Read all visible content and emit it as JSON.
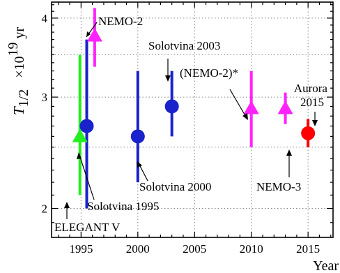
{
  "chart_data": {
    "type": "scatter",
    "ylabel": "T",
    "ylabel_subscript": "1/2",
    "ylabel_unit": "×10",
    "ylabel_unit_exp": "19",
    "ylabel_unit_suffix": " yr",
    "xlabel": "Year",
    "xlim": [
      1992.4,
      2017.2
    ],
    "ylim": [
      1.8,
      4.24
    ],
    "y_scale": "log",
    "grid": true,
    "x_ticks": [
      1995,
      2000,
      2005,
      2010,
      2015
    ],
    "y_ticks": [
      2,
      3,
      4
    ],
    "points": [
      {
        "id": "elegant-v",
        "label": "ELEGANT V",
        "x": 1994.9,
        "y": 2.6,
        "err_low": 2.1,
        "err_high": 3.5,
        "marker": "triangle",
        "color": "#22ee22"
      },
      {
        "id": "solotvina-1995",
        "label": "Solotvina 1995",
        "x": 1995.5,
        "y": 2.7,
        "err_low": 2.0,
        "err_high": 3.7,
        "marker": "circle",
        "color": "#1a22cc"
      },
      {
        "id": "nemo-2",
        "label": "NEMO-2",
        "x": 1996.2,
        "y": 3.75,
        "err_low": 3.35,
        "err_high": 4.15,
        "marker": "triangle",
        "color": "#ff22ff"
      },
      {
        "id": "solotvina-2000",
        "label": "Solotvina 2000",
        "x": 2000,
        "y": 2.6,
        "err_low": 2.2,
        "err_high": 3.3,
        "marker": "circle",
        "color": "#1a22cc"
      },
      {
        "id": "solotvina-2003",
        "label": "Solotvina 2003",
        "x": 2003,
        "y": 2.9,
        "err_low": 2.6,
        "err_high": 3.3,
        "marker": "circle",
        "color": "#1a22cc"
      },
      {
        "id": "nemo-2-star",
        "label": "(NEMO-2)*",
        "x": 2010,
        "y": 2.88,
        "err_low": 2.5,
        "err_high": 3.3,
        "marker": "triangle",
        "color": "#ff22ff"
      },
      {
        "id": "nemo-3",
        "label": "NEMO-3",
        "x": 2013,
        "y": 2.88,
        "err_low": 2.72,
        "err_high": 3.05,
        "marker": "triangle",
        "color": "#ff22ff"
      },
      {
        "id": "aurora-2015",
        "label": "Aurora\n2015",
        "x": 2015,
        "y": 2.63,
        "err_low": 2.5,
        "err_high": 2.77,
        "marker": "circle",
        "color": "#ff0000"
      }
    ]
  }
}
